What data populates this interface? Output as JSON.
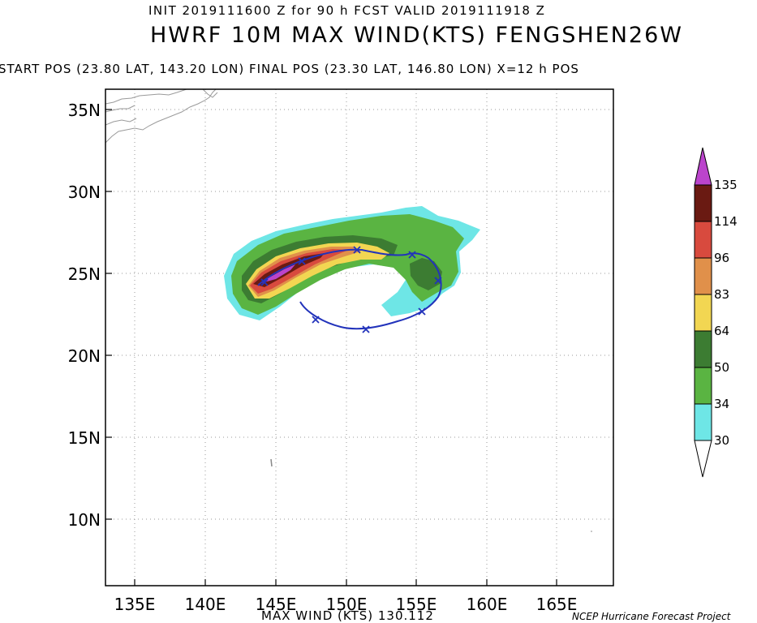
{
  "header": {
    "init_line": "INIT 2019111600 Z for  90 h FCST VALID 2019111918 Z",
    "title": "HWRF 10M MAX WIND(KTS) FENGSHEN26W",
    "position_line": "START POS (23.80 LAT, 143.20 LON)   FINAL POS (23.30 LAT, 146.80 LON)  X=12 h POS"
  },
  "map": {
    "lat_labels": [
      "35N",
      "30N",
      "25N",
      "20N",
      "15N",
      "10N"
    ],
    "lon_labels": [
      "135E",
      "140E",
      "145E",
      "150E",
      "155E",
      "160E",
      "165E"
    ],
    "colors": {
      "c30": "#6ee6e6",
      "c34": "#5ab442",
      "c50": "#3c7c32",
      "c64": "#f2d652",
      "c83": "#e0904a",
      "c96": "#d84a3e",
      "c114": "#6a1a12",
      "c135": "#bb44cc",
      "track": "#2233bb"
    }
  },
  "colorbar": {
    "labels": [
      "135",
      "114",
      "96",
      "83",
      "64",
      "50",
      "34",
      "30"
    ]
  },
  "footer": {
    "max_wind": "MAX WIND (KTS) 130.112",
    "credit": "NCEP Hurricane Forecast Project"
  }
}
